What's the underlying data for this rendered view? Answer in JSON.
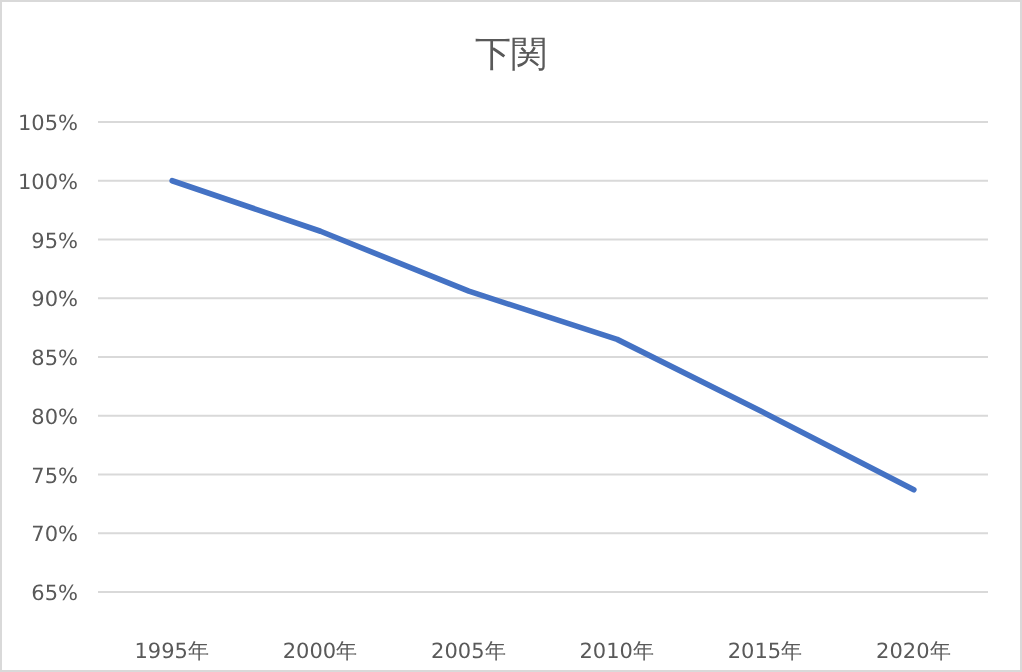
{
  "chart_data": {
    "type": "line",
    "title": "下関",
    "categories": [
      "1995年",
      "2000年",
      "2005年",
      "2010年",
      "2015年",
      "2020年"
    ],
    "series": [
      {
        "color": "#4472c4",
        "values": [
          100,
          95.7,
          90.6,
          86.5,
          80.2,
          73.7
        ]
      }
    ],
    "ylim": [
      65,
      105
    ],
    "yticks": [
      {
        "value": 65,
        "label": "65%"
      },
      {
        "value": 70,
        "label": "70%"
      },
      {
        "value": 75,
        "label": "75%"
      },
      {
        "value": 80,
        "label": "80%"
      },
      {
        "value": 85,
        "label": "85%"
      },
      {
        "value": 90,
        "label": "90%"
      },
      {
        "value": 95,
        "label": "95%"
      },
      {
        "value": 100,
        "label": "100%"
      },
      {
        "value": 105,
        "label": "105%"
      }
    ],
    "grid": "y",
    "marker": "none",
    "line_style": "solid"
  }
}
